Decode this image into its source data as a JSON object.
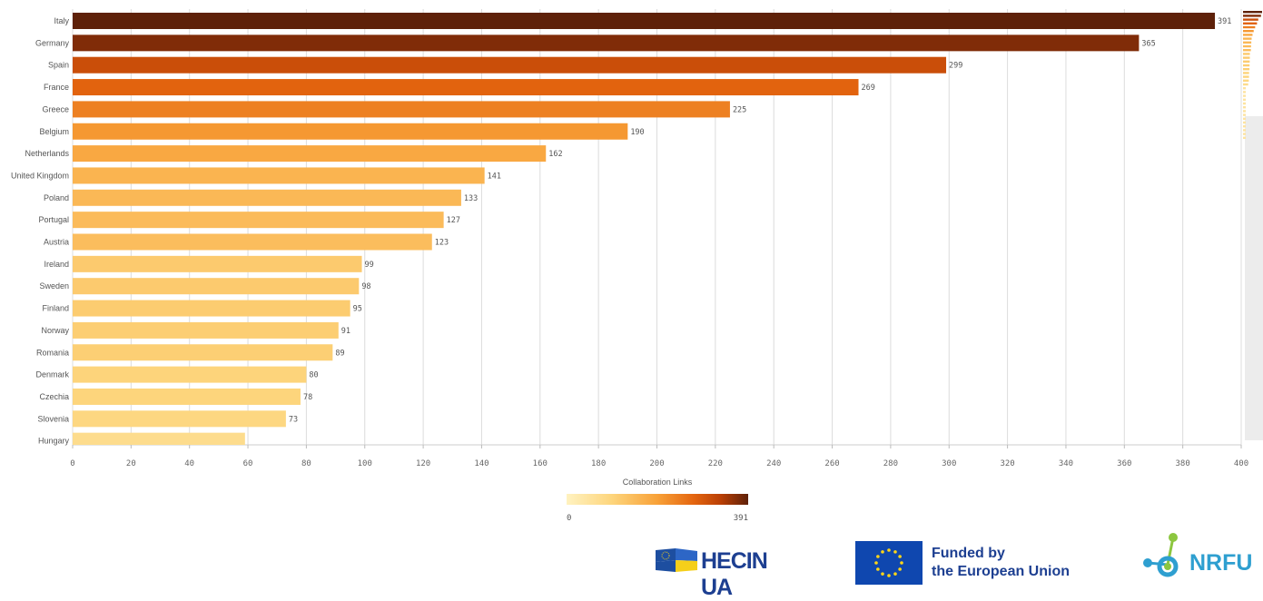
{
  "chart_data": {
    "type": "bar",
    "orientation": "horizontal",
    "categories": [
      "Italy",
      "Germany",
      "Spain",
      "France",
      "Greece",
      "Belgium",
      "Netherlands",
      "United Kingdom",
      "Poland",
      "Portugal",
      "Austria",
      "Ireland",
      "Sweden",
      "Finland",
      "Norway",
      "Romania",
      "Denmark",
      "Czechia",
      "Slovenia",
      "Hungary"
    ],
    "values": [
      391,
      365,
      299,
      269,
      225,
      190,
      162,
      141,
      133,
      127,
      123,
      99,
      98,
      95,
      91,
      89,
      80,
      78,
      73,
      59
    ],
    "value_labels": [
      "391",
      "365",
      "299",
      "269",
      "225",
      "190",
      "162",
      "141",
      "133",
      "127",
      "123",
      "99",
      "98",
      "95",
      "91",
      "89",
      "80",
      "78",
      "73",
      ""
    ],
    "xlabel": "Collaboration Links",
    "xlim": [
      0,
      400
    ],
    "xticks": [
      0,
      20,
      40,
      60,
      80,
      100,
      120,
      140,
      160,
      180,
      200,
      220,
      240,
      260,
      280,
      300,
      320,
      340,
      360,
      380,
      400
    ],
    "grid": true,
    "color_scale": {
      "min": 0,
      "max": 391,
      "min_label": "0",
      "max_label": "391",
      "colors": [
        "#fff2c0",
        "#fdd57c",
        "#f8a138",
        "#e4650f",
        "#b93f05",
        "#5e2109"
      ]
    },
    "legend_placement": "bottom-center"
  },
  "logos": {
    "heco": "HECIN UA",
    "eu_line1": "Funded by",
    "eu_line2": "the European Union",
    "nrfu": "NRFU"
  }
}
